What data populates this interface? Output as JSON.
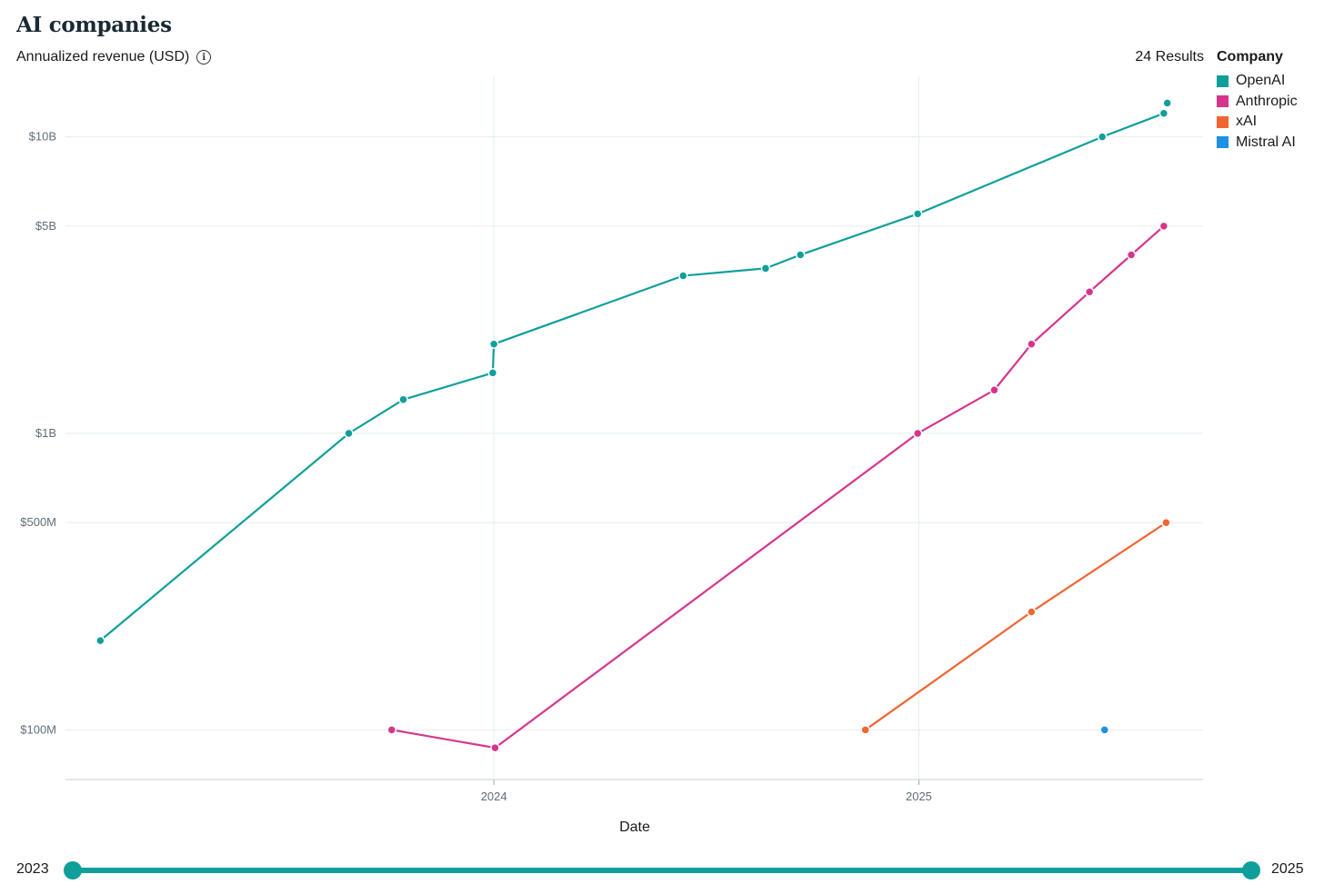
{
  "header": {
    "title": "AI companies",
    "subtitle": "Annualized revenue (USD)",
    "info_icon": "info-icon",
    "results": "24 Results"
  },
  "legend": {
    "title": "Company",
    "items": [
      {
        "label": "OpenAI",
        "color": "#0e9f9a"
      },
      {
        "label": "Anthropic",
        "color": "#d6358c"
      },
      {
        "label": "xAI",
        "color": "#f26430"
      },
      {
        "label": "Mistral AI",
        "color": "#1e90e6"
      }
    ]
  },
  "chart_data": {
    "type": "line",
    "xlabel": "Date",
    "ylabel": "",
    "y_scale": "log",
    "ylim": [
      68000000,
      16000000000
    ],
    "xlim": [
      "2023-01-15",
      "2025-08-15"
    ],
    "x_ticks": [
      {
        "date": "2024-01-01",
        "label": "2024"
      },
      {
        "date": "2025-01-01",
        "label": "2025"
      }
    ],
    "y_ticks": [
      {
        "value": 100000000,
        "label": "$100M"
      },
      {
        "value": 500000000,
        "label": "$500M"
      },
      {
        "value": 1000000000,
        "label": "$1B"
      },
      {
        "value": 5000000000,
        "label": "$5B"
      },
      {
        "value": 10000000000,
        "label": "$10B"
      }
    ],
    "grid": true,
    "legend_position": "top-right",
    "series": [
      {
        "name": "OpenAI",
        "color": "#0e9f9a",
        "points": [
          {
            "x": "2023-01-27",
            "y": 200000000
          },
          {
            "x": "2023-08-29",
            "y": 1000000000
          },
          {
            "x": "2023-10-15",
            "y": 1300000000
          },
          {
            "x": "2023-12-31",
            "y": 1600000000
          },
          {
            "x": "2024-01-01",
            "y": 2000000000
          },
          {
            "x": "2024-06-12",
            "y": 3400000000
          },
          {
            "x": "2024-08-22",
            "y": 3600000000
          },
          {
            "x": "2024-09-21",
            "y": 4000000000
          },
          {
            "x": "2024-12-31",
            "y": 5500000000
          },
          {
            "x": "2025-06-08",
            "y": 10000000000
          },
          {
            "x": "2025-07-31",
            "y": 12000000000
          }
        ],
        "unconnected": [
          {
            "x": "2025-08-03",
            "y": 13000000000
          }
        ]
      },
      {
        "name": "Anthropic",
        "color": "#d6358c",
        "points": [
          {
            "x": "2023-10-05",
            "y": 100000000
          },
          {
            "x": "2024-01-02",
            "y": 87000000
          },
          {
            "x": "2024-12-31",
            "y": 1000000000
          },
          {
            "x": "2025-03-07",
            "y": 1400000000
          },
          {
            "x": "2025-04-08",
            "y": 2000000000
          },
          {
            "x": "2025-05-28",
            "y": 3000000000
          },
          {
            "x": "2025-07-03",
            "y": 4000000000
          },
          {
            "x": "2025-07-31",
            "y": 5000000000
          }
        ]
      },
      {
        "name": "xAI",
        "color": "#f26430",
        "points": [
          {
            "x": "2024-11-16",
            "y": 100000000
          },
          {
            "x": "2025-04-08",
            "y": 250000000
          },
          {
            "x": "2025-08-02",
            "y": 500000000
          }
        ]
      },
      {
        "name": "Mistral AI",
        "color": "#1e90e6",
        "points": [
          {
            "x": "2025-06-10",
            "y": 100000000
          }
        ]
      }
    ]
  },
  "slider": {
    "start_label": "2023",
    "end_label": "2025",
    "start_value": 0,
    "end_value": 1
  }
}
